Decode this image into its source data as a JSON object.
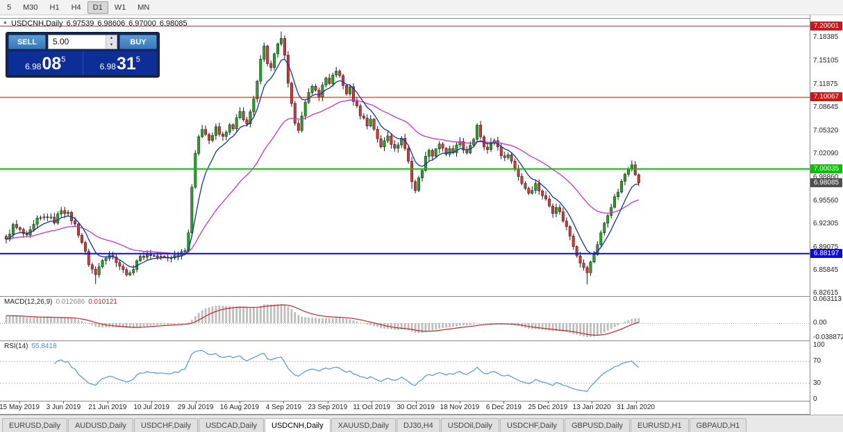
{
  "toolbar": {
    "timeframes": [
      {
        "label": "5",
        "active": false
      },
      {
        "label": "M30",
        "active": false
      },
      {
        "label": "H1",
        "active": false
      },
      {
        "label": "H4",
        "active": false
      },
      {
        "label": "D1",
        "active": true
      },
      {
        "label": "W1",
        "active": false
      },
      {
        "label": "MN",
        "active": false
      }
    ]
  },
  "header": {
    "title": "USDCNH,Daily",
    "o": "6.97539",
    "h": "6.98606",
    "l": "6.97000",
    "c": "6.98085"
  },
  "icons": {
    "spinner_up": "▲",
    "spinner_down": "▼",
    "chart_marker": "▲"
  },
  "trade_panel": {
    "sell_label": "SELL",
    "buy_label": "BUY",
    "volume": "5.00",
    "sell_price": {
      "small": "6.98",
      "big": "08",
      "sup": "5"
    },
    "buy_price": {
      "small": "6.98",
      "big": "31",
      "sup": "5"
    }
  },
  "price_axis": {
    "ticks": [
      "7.18385",
      "7.15105",
      "7.11875",
      "7.08645",
      "7.05320",
      "7.02090",
      "6.98860",
      "6.95560",
      "6.92305",
      "6.89075",
      "6.85845",
      "6.82615"
    ],
    "badges": [
      {
        "label": "7.20001",
        "price": 7.20001,
        "bg": "#d01616",
        "fg": "#ffffff"
      },
      {
        "label": "7.10067",
        "price": 7.10067,
        "bg": "#d01616",
        "fg": "#ffffff"
      },
      {
        "label": "7.00035",
        "price": 7.00035,
        "bg": "#00c400",
        "fg": "#ffffff"
      },
      {
        "label": "6.98085",
        "price": 6.98085,
        "bg": "#4f4f4f",
        "fg": "#ffffff"
      },
      {
        "label": "6.88197",
        "price": 6.88197,
        "bg": "#0a0adf",
        "fg": "#ffffff"
      }
    ]
  },
  "levels": [
    {
      "price": 7.20001,
      "color": "#d01616",
      "width": 1
    },
    {
      "price": 7.10067,
      "color": "#d01616",
      "width": 1
    },
    {
      "price": 7.00035,
      "color": "#00c400",
      "width": 2
    },
    {
      "price": 6.88197,
      "color": "#0a0adf",
      "width": 2
    }
  ],
  "chart_data": {
    "type": "candlestick",
    "symbol": "USDCNH",
    "timeframe": "Daily",
    "title": "USDCNH,Daily 6.97539 6.98606 6.97000 6.98085",
    "n": 185,
    "last_close": 6.98085,
    "price_range": {
      "top": 7.2095,
      "bottom": 6.8225
    },
    "colors": {
      "up": "#2aa22a",
      "down": "#d23a3a",
      "wick": "#1c1c1c",
      "ma_fast": "#12339e",
      "ma_slow": "#cc2ecc",
      "macd_hist": "#bdbdbd",
      "macd_signal": "#c22222",
      "rsi": "#4f97cf"
    },
    "ma_fast_period": 8,
    "ma_slow_period": 34,
    "x_labels": [
      "15 May 2019",
      "3 Jun 2019",
      "21 Jun 2019",
      "10 Jul 2019",
      "29 Jul 2019",
      "16 Aug 2019",
      "4 Sep 2019",
      "23 Sep 2019",
      "11 Oct 2019",
      "30 Oct 2019",
      "18 Nov 2019",
      "6 Dec 2019",
      "25 Dec 2019",
      "13 Jan 2020",
      "31 Jan 2020"
    ],
    "waypoints": [
      [
        0,
        6.902
      ],
      [
        2,
        6.921
      ],
      [
        4,
        6.914
      ],
      [
        6,
        6.905
      ],
      [
        9,
        6.929
      ],
      [
        12,
        6.934
      ],
      [
        14,
        6.927
      ],
      [
        16,
        6.944
      ],
      [
        18,
        6.937
      ],
      [
        20,
        6.922
      ],
      [
        22,
        6.898
      ],
      [
        24,
        6.868
      ],
      [
        26,
        6.852
      ],
      [
        28,
        6.875
      ],
      [
        30,
        6.881
      ],
      [
        32,
        6.872
      ],
      [
        34,
        6.858
      ],
      [
        36,
        6.852
      ],
      [
        38,
        6.873
      ],
      [
        41,
        6.882
      ],
      [
        44,
        6.877
      ],
      [
        47,
        6.876
      ],
      [
        50,
        6.881
      ],
      [
        52,
        6.889
      ],
      [
        53,
        6.912
      ],
      [
        54,
        6.972
      ],
      [
        55,
        7.024
      ],
      [
        56,
        7.048
      ],
      [
        57,
        7.056
      ],
      [
        58,
        7.049
      ],
      [
        59,
        7.038
      ],
      [
        60,
        7.047
      ],
      [
        61,
        7.058
      ],
      [
        62,
        7.051
      ],
      [
        63,
        7.044
      ],
      [
        64,
        7.051
      ],
      [
        65,
        7.061
      ],
      [
        66,
        7.054
      ],
      [
        67,
        7.071
      ],
      [
        68,
        7.083
      ],
      [
        69,
        7.069
      ],
      [
        70,
        7.061
      ],
      [
        71,
        7.079
      ],
      [
        72,
        7.096
      ],
      [
        73,
        7.126
      ],
      [
        74,
        7.156
      ],
      [
        75,
        7.171
      ],
      [
        76,
        7.149
      ],
      [
        77,
        7.141
      ],
      [
        78,
        7.159
      ],
      [
        79,
        7.173
      ],
      [
        80,
        7.184
      ],
      [
        81,
        7.157
      ],
      [
        82,
        7.118
      ],
      [
        83,
        7.089
      ],
      [
        84,
        7.067
      ],
      [
        85,
        7.057
      ],
      [
        86,
        7.073
      ],
      [
        87,
        7.091
      ],
      [
        88,
        7.106
      ],
      [
        89,
        7.119
      ],
      [
        90,
        7.109
      ],
      [
        91,
        7.101
      ],
      [
        92,
        7.119
      ],
      [
        93,
        7.126
      ],
      [
        94,
        7.117
      ],
      [
        95,
        7.131
      ],
      [
        96,
        7.139
      ],
      [
        97,
        7.129
      ],
      [
        98,
        7.117
      ],
      [
        99,
        7.107
      ],
      [
        100,
        7.113
      ],
      [
        101,
        7.097
      ],
      [
        102,
        7.087
      ],
      [
        103,
        7.077
      ],
      [
        104,
        7.071
      ],
      [
        105,
        7.061
      ],
      [
        106,
        7.071
      ],
      [
        107,
        7.057
      ],
      [
        108,
        7.041
      ],
      [
        109,
        7.031
      ],
      [
        110,
        7.041
      ],
      [
        111,
        7.049
      ],
      [
        112,
        7.037
      ],
      [
        113,
        7.027
      ],
      [
        114,
        7.036
      ],
      [
        115,
        7.043
      ],
      [
        116,
        7.029
      ],
      [
        117,
        7.011
      ],
      [
        118,
        6.984
      ],
      [
        119,
        6.971
      ],
      [
        120,
        6.986
      ],
      [
        121,
        7.001
      ],
      [
        122,
        7.016
      ],
      [
        123,
        7.029
      ],
      [
        124,
        7.019
      ],
      [
        125,
        7.029
      ],
      [
        126,
        7.036
      ],
      [
        127,
        7.027
      ],
      [
        128,
        7.019
      ],
      [
        129,
        7.029
      ],
      [
        130,
        7.021
      ],
      [
        131,
        7.031
      ],
      [
        132,
        7.039
      ],
      [
        133,
        7.029
      ],
      [
        134,
        7.021
      ],
      [
        135,
        7.031
      ],
      [
        136,
        7.043
      ],
      [
        137,
        7.063
      ],
      [
        138,
        7.047
      ],
      [
        139,
        7.034
      ],
      [
        140,
        7.027
      ],
      [
        141,
        7.036
      ],
      [
        142,
        7.041
      ],
      [
        143,
        7.031
      ],
      [
        144,
        7.021
      ],
      [
        145,
        7.014
      ],
      [
        146,
        7.023
      ],
      [
        147,
        7.011
      ],
      [
        148,
        7.001
      ],
      [
        149,
        6.991
      ],
      [
        150,
        6.981
      ],
      [
        151,
        6.974
      ],
      [
        152,
        6.967
      ],
      [
        153,
        6.973
      ],
      [
        154,
        6.979
      ],
      [
        155,
        6.971
      ],
      [
        156,
        6.964
      ],
      [
        157,
        6.957
      ],
      [
        158,
        6.949
      ],
      [
        159,
        6.941
      ],
      [
        160,
        6.949
      ],
      [
        161,
        6.939
      ],
      [
        162,
        6.929
      ],
      [
        163,
        6.919
      ],
      [
        164,
        6.907
      ],
      [
        165,
        6.894
      ],
      [
        166,
        6.881
      ],
      [
        167,
        6.871
      ],
      [
        168,
        6.861
      ],
      [
        169,
        6.856
      ],
      [
        170,
        6.869
      ],
      [
        171,
        6.881
      ],
      [
        172,
        6.896
      ],
      [
        173,
        6.911
      ],
      [
        174,
        6.923
      ],
      [
        175,
        6.936
      ],
      [
        176,
        6.949
      ],
      [
        177,
        6.959
      ],
      [
        178,
        6.969
      ],
      [
        179,
        6.981
      ],
      [
        180,
        6.993
      ],
      [
        181,
        7.003
      ],
      [
        182,
        7.009
      ],
      [
        183,
        6.991
      ],
      [
        184,
        6.981
      ]
    ],
    "wick_extensions": [
      {
        "i": 26,
        "low": 0.009
      },
      {
        "i": 118,
        "low": 0.007
      },
      {
        "i": 169,
        "low": 0.011
      },
      {
        "i": 80,
        "high": 0.008
      }
    ],
    "macd": {
      "label": "MACD(12,26,9)",
      "value1": "0.012686",
      "value2": "0.010121",
      "params": [
        12,
        26,
        9
      ],
      "axis": [
        "0.063113",
        "0.00",
        "-0.038872"
      ]
    },
    "rsi": {
      "label": "RSI(14)",
      "value": "55.8418",
      "period": 14,
      "axis": [
        100,
        70,
        30,
        0
      ],
      "guide_levels": [
        70,
        30
      ]
    }
  },
  "tabs": [
    {
      "label": "EURUSD,Daily",
      "active": false
    },
    {
      "label": "AUDUSD,Daily",
      "active": false
    },
    {
      "label": "USDCHF,Daily",
      "active": false
    },
    {
      "label": "USDCAD,Daily",
      "active": false
    },
    {
      "label": "USDCNH,Daily",
      "active": true
    },
    {
      "label": "XAUUSD,Daily",
      "active": false
    },
    {
      "label": "DJ30,H4",
      "active": false
    },
    {
      "label": "USDOil,Daily",
      "active": false
    },
    {
      "label": "USDCHF,Daily",
      "active": false
    },
    {
      "label": "GBPUSD,Daily",
      "active": false
    },
    {
      "label": "EURUSD,H1",
      "active": false
    },
    {
      "label": "GBPAUD,H1",
      "active": false
    }
  ]
}
